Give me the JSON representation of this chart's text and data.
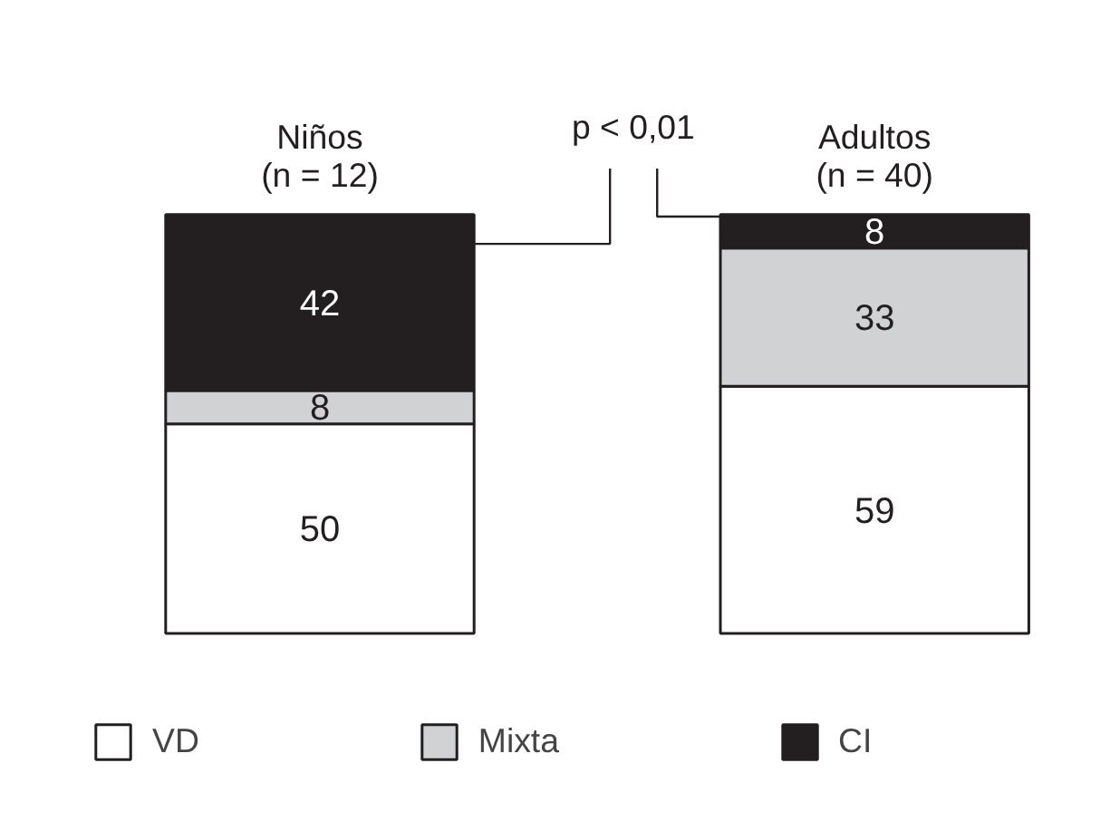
{
  "chart_data": {
    "type": "bar",
    "stacked": true,
    "data_labels": true,
    "legend": "bottom",
    "categories": [
      "Niños\n(n = 12)",
      "Adultos\n(n = 40)"
    ],
    "series": [
      {
        "name": "VD",
        "color": "#ffffff",
        "values": [
          50,
          59
        ]
      },
      {
        "name": "Mixta",
        "color": "#d1d2d4",
        "values": [
          8,
          33
        ]
      },
      {
        "name": "CI",
        "color": "#231f20",
        "values": [
          42,
          8
        ]
      }
    ],
    "annotations": [
      "p < 0,01"
    ]
  }
}
